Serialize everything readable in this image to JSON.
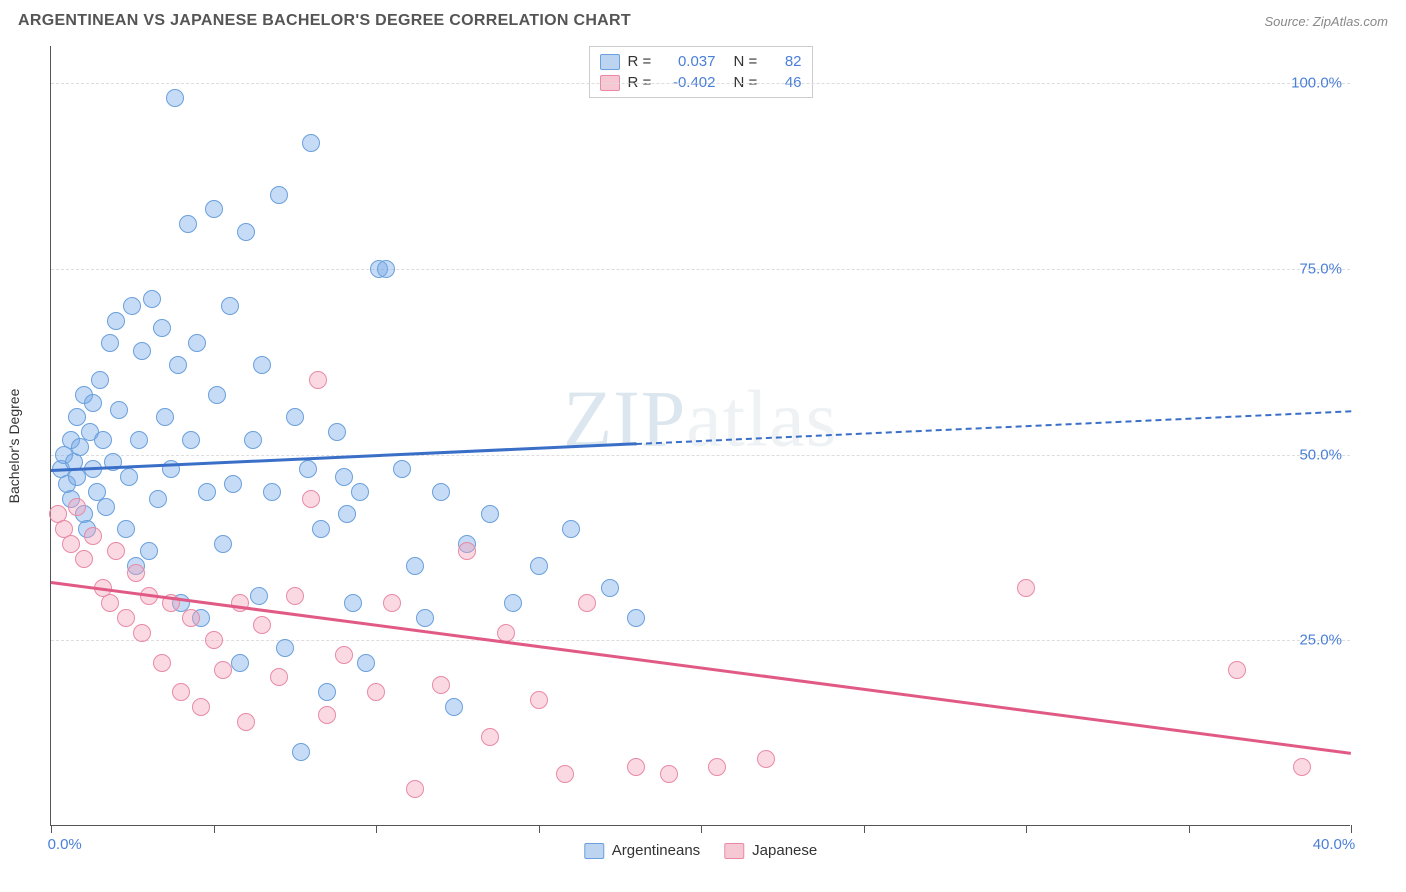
{
  "header": {
    "title": "ARGENTINEAN VS JAPANESE BACHELOR'S DEGREE CORRELATION CHART",
    "source_prefix": "Source: ",
    "source_name": "ZipAtlas.com"
  },
  "chart": {
    "type": "scatter",
    "ylabel": "Bachelor's Degree",
    "watermark": {
      "part1": "ZIP",
      "part2": "atlas"
    },
    "background_color": "#ffffff",
    "grid_color": "#dddddd",
    "axis_color": "#555555",
    "tick_label_color": "#4a7fd8",
    "xlim": [
      0,
      40
    ],
    "ylim": [
      0,
      105
    ],
    "xticks": [
      0,
      5,
      10,
      15,
      20,
      25,
      30,
      35,
      40
    ],
    "xtick_labels": {
      "0": "0.0%",
      "40": "40.0%"
    },
    "yticks": [
      25,
      50,
      75,
      100
    ],
    "ytick_labels": {
      "25": "25.0%",
      "50": "50.0%",
      "75": "75.0%",
      "100": "100.0%"
    },
    "series": [
      {
        "key": "argentineans",
        "label": "Argentineans",
        "fill": "rgba(120,170,230,0.42)",
        "stroke": "#6aa0dd",
        "swatch_fill": "#bcd4ef",
        "swatch_stroke": "#6aa0dd",
        "trend_color": "#3a6fc8",
        "R": "0.037",
        "N": "82",
        "trend": {
          "x1": 0,
          "y1": 48,
          "x2": 40,
          "y2": 56,
          "solid_until_x": 18
        },
        "points": [
          [
            0.3,
            48
          ],
          [
            0.4,
            50
          ],
          [
            0.5,
            46
          ],
          [
            0.6,
            52
          ],
          [
            0.6,
            44
          ],
          [
            0.7,
            49
          ],
          [
            0.8,
            55
          ],
          [
            0.8,
            47
          ],
          [
            0.9,
            51
          ],
          [
            1.0,
            42
          ],
          [
            1.0,
            58
          ],
          [
            1.1,
            40
          ],
          [
            1.2,
            53
          ],
          [
            1.3,
            48
          ],
          [
            1.3,
            57
          ],
          [
            1.4,
            45
          ],
          [
            1.5,
            60
          ],
          [
            1.6,
            52
          ],
          [
            1.7,
            43
          ],
          [
            1.8,
            65
          ],
          [
            1.9,
            49
          ],
          [
            2.0,
            68
          ],
          [
            2.1,
            56
          ],
          [
            2.3,
            40
          ],
          [
            2.4,
            47
          ],
          [
            2.5,
            70
          ],
          [
            2.6,
            35
          ],
          [
            2.7,
            52
          ],
          [
            2.8,
            64
          ],
          [
            3.0,
            37
          ],
          [
            3.1,
            71
          ],
          [
            3.3,
            44
          ],
          [
            3.4,
            67
          ],
          [
            3.5,
            55
          ],
          [
            3.7,
            48
          ],
          [
            3.8,
            98
          ],
          [
            3.9,
            62
          ],
          [
            4.0,
            30
          ],
          [
            4.2,
            81
          ],
          [
            4.3,
            52
          ],
          [
            4.5,
            65
          ],
          [
            4.6,
            28
          ],
          [
            4.8,
            45
          ],
          [
            5.0,
            83
          ],
          [
            5.1,
            58
          ],
          [
            5.3,
            38
          ],
          [
            5.5,
            70
          ],
          [
            5.6,
            46
          ],
          [
            5.8,
            22
          ],
          [
            6.0,
            80
          ],
          [
            6.2,
            52
          ],
          [
            6.4,
            31
          ],
          [
            6.5,
            62
          ],
          [
            6.8,
            45
          ],
          [
            7.0,
            85
          ],
          [
            7.2,
            24
          ],
          [
            7.5,
            55
          ],
          [
            7.7,
            10
          ],
          [
            7.9,
            48
          ],
          [
            8.0,
            92
          ],
          [
            8.3,
            40
          ],
          [
            8.5,
            18
          ],
          [
            8.8,
            53
          ],
          [
            9.0,
            47
          ],
          [
            9.1,
            42
          ],
          [
            9.3,
            30
          ],
          [
            9.5,
            45
          ],
          [
            9.7,
            22
          ],
          [
            10.1,
            75
          ],
          [
            10.3,
            75
          ],
          [
            10.8,
            48
          ],
          [
            11.2,
            35
          ],
          [
            11.5,
            28
          ],
          [
            12.0,
            45
          ],
          [
            12.4,
            16
          ],
          [
            12.8,
            38
          ],
          [
            13.5,
            42
          ],
          [
            14.2,
            30
          ],
          [
            15.0,
            35
          ],
          [
            16.0,
            40
          ],
          [
            17.2,
            32
          ],
          [
            18.0,
            28
          ]
        ]
      },
      {
        "key": "japanese",
        "label": "Japanese",
        "fill": "rgba(245,160,185,0.40)",
        "stroke": "#e88aa5",
        "swatch_fill": "#f6c8d4",
        "swatch_stroke": "#e88aa5",
        "trend_color": "#e15a85",
        "R": "-0.402",
        "N": "46",
        "trend": {
          "x1": 0,
          "y1": 33,
          "x2": 40,
          "y2": 10,
          "solid_until_x": 40
        },
        "points": [
          [
            0.2,
            42
          ],
          [
            0.4,
            40
          ],
          [
            0.6,
            38
          ],
          [
            0.8,
            43
          ],
          [
            1.0,
            36
          ],
          [
            1.3,
            39
          ],
          [
            1.6,
            32
          ],
          [
            1.8,
            30
          ],
          [
            2.0,
            37
          ],
          [
            2.3,
            28
          ],
          [
            2.6,
            34
          ],
          [
            2.8,
            26
          ],
          [
            3.0,
            31
          ],
          [
            3.4,
            22
          ],
          [
            3.7,
            30
          ],
          [
            4.0,
            18
          ],
          [
            4.3,
            28
          ],
          [
            4.6,
            16
          ],
          [
            5.0,
            25
          ],
          [
            5.3,
            21
          ],
          [
            5.8,
            30
          ],
          [
            6.0,
            14
          ],
          [
            6.5,
            27
          ],
          [
            7.0,
            20
          ],
          [
            7.5,
            31
          ],
          [
            8.0,
            44
          ],
          [
            8.2,
            60
          ],
          [
            8.5,
            15
          ],
          [
            9.0,
            23
          ],
          [
            10.0,
            18
          ],
          [
            10.5,
            30
          ],
          [
            11.2,
            5
          ],
          [
            12.0,
            19
          ],
          [
            12.8,
            37
          ],
          [
            13.5,
            12
          ],
          [
            14.0,
            26
          ],
          [
            15.0,
            17
          ],
          [
            15.8,
            7
          ],
          [
            16.5,
            30
          ],
          [
            18.0,
            8
          ],
          [
            19.0,
            7
          ],
          [
            20.5,
            8
          ],
          [
            22.0,
            9
          ],
          [
            30.0,
            32
          ],
          [
            36.5,
            21
          ],
          [
            38.5,
            8
          ]
        ]
      }
    ],
    "legend_top": {
      "R_label": "R =",
      "N_label": "N ="
    }
  }
}
